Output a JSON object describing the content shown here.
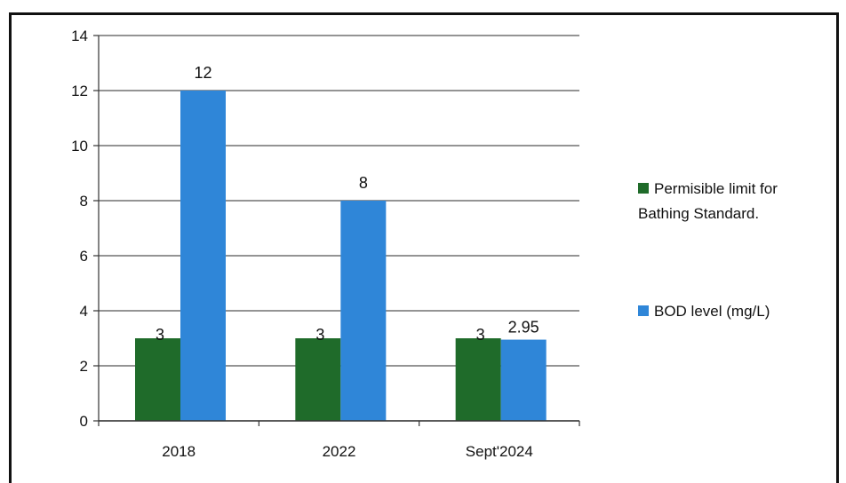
{
  "chart_data": {
    "type": "bar",
    "title": "",
    "xlabel": "",
    "ylabel": "",
    "categories": [
      "2018",
      "2022",
      "Sept'2024"
    ],
    "series": [
      {
        "name": "Permisible limit for Bathing Standard.",
        "legend_lines": [
          "Permisible limit for",
          "Bathing Standard."
        ],
        "color": "#1f6b2a",
        "values": [
          3,
          3,
          3
        ],
        "labels": [
          "3",
          "3",
          "3"
        ]
      },
      {
        "name": "BOD level (mg/L)",
        "legend_lines": [
          "BOD level (mg/L)"
        ],
        "color": "#2f86d8",
        "values": [
          12,
          8,
          2.95
        ],
        "labels": [
          "12",
          "8",
          "2.95"
        ]
      }
    ],
    "ylim": [
      0,
      14
    ],
    "yticks": [
      "0",
      "2",
      "4",
      "6",
      "8",
      "10",
      "12",
      "14"
    ],
    "grid": true,
    "legend_position": "right"
  }
}
